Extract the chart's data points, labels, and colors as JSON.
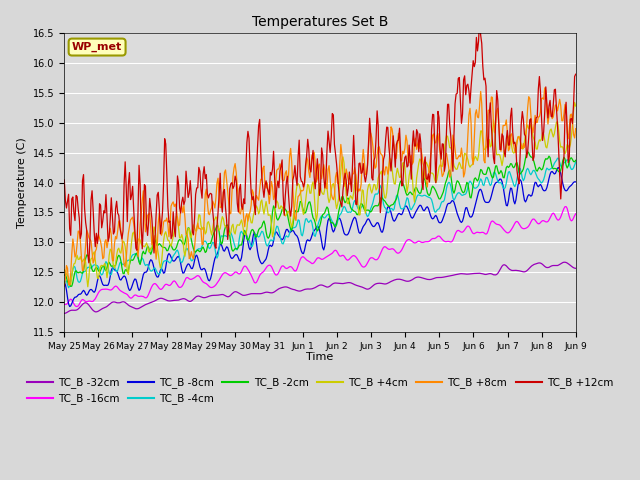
{
  "title": "Temperatures Set B",
  "xlabel": "Time",
  "ylabel": "Temperature (C)",
  "ylim": [
    11.5,
    16.5
  ],
  "yticks": [
    11.5,
    12.0,
    12.5,
    13.0,
    13.5,
    14.0,
    14.5,
    15.0,
    15.5,
    16.0,
    16.5
  ],
  "background_color": "#d8d8d8",
  "plot_bg_color": "#dcdcdc",
  "series": [
    {
      "label": "TC_B -32cm",
      "color": "#9900bb"
    },
    {
      "label": "TC_B -16cm",
      "color": "#ff00ff"
    },
    {
      "label": "TC_B -8cm",
      "color": "#0000dd"
    },
    {
      "label": "TC_B -4cm",
      "color": "#00cccc"
    },
    {
      "label": "TC_B -2cm",
      "color": "#00cc00"
    },
    {
      "label": "TC_B +4cm",
      "color": "#cccc00"
    },
    {
      "label": "TC_B +8cm",
      "color": "#ff8800"
    },
    {
      "label": "TC_B +12cm",
      "color": "#cc0000"
    }
  ],
  "xtick_labels": [
    "May 25",
    "May 26",
    "May 27",
    "May 28",
    "May 29",
    "May 30",
    "May 31",
    "Jun 1",
    "Jun 2",
    "Jun 3",
    "Jun 4",
    "Jun 5",
    "Jun 6",
    "Jun 7",
    "Jun 8",
    "Jun 9"
  ],
  "n_points": 480,
  "wp_met_label": "WP_met",
  "legend_ncol": 6,
  "grid_color": "#ffffff",
  "figsize": [
    6.4,
    4.8
  ],
  "dpi": 100
}
